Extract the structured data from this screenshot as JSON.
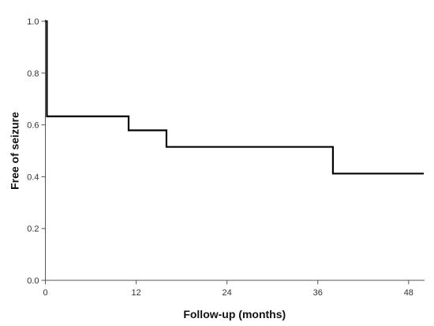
{
  "chart_data": {
    "type": "line",
    "subtype": "step",
    "title": "",
    "xlabel": "Follow-up (months)",
    "ylabel": "Free of seizure",
    "xlim": [
      0,
      50
    ],
    "ylim": [
      0,
      1.0
    ],
    "xticks": [
      0,
      12,
      24,
      36,
      48
    ],
    "yticks": [
      0.0,
      0.2,
      0.4,
      0.6,
      0.8,
      1.0
    ],
    "xtick_labels": [
      "0",
      "12",
      "24",
      "36",
      "48"
    ],
    "ytick_labels": [
      "0.0",
      "0.2",
      "0.4",
      "0.6",
      "0.8",
      "1.0"
    ],
    "grid": false,
    "line_color": "#000000",
    "series": [
      {
        "x": [
          0,
          0.2,
          11,
          16,
          38,
          50
        ],
        "y": [
          1.0,
          0.633,
          0.579,
          0.515,
          0.412,
          0.412
        ]
      }
    ]
  }
}
